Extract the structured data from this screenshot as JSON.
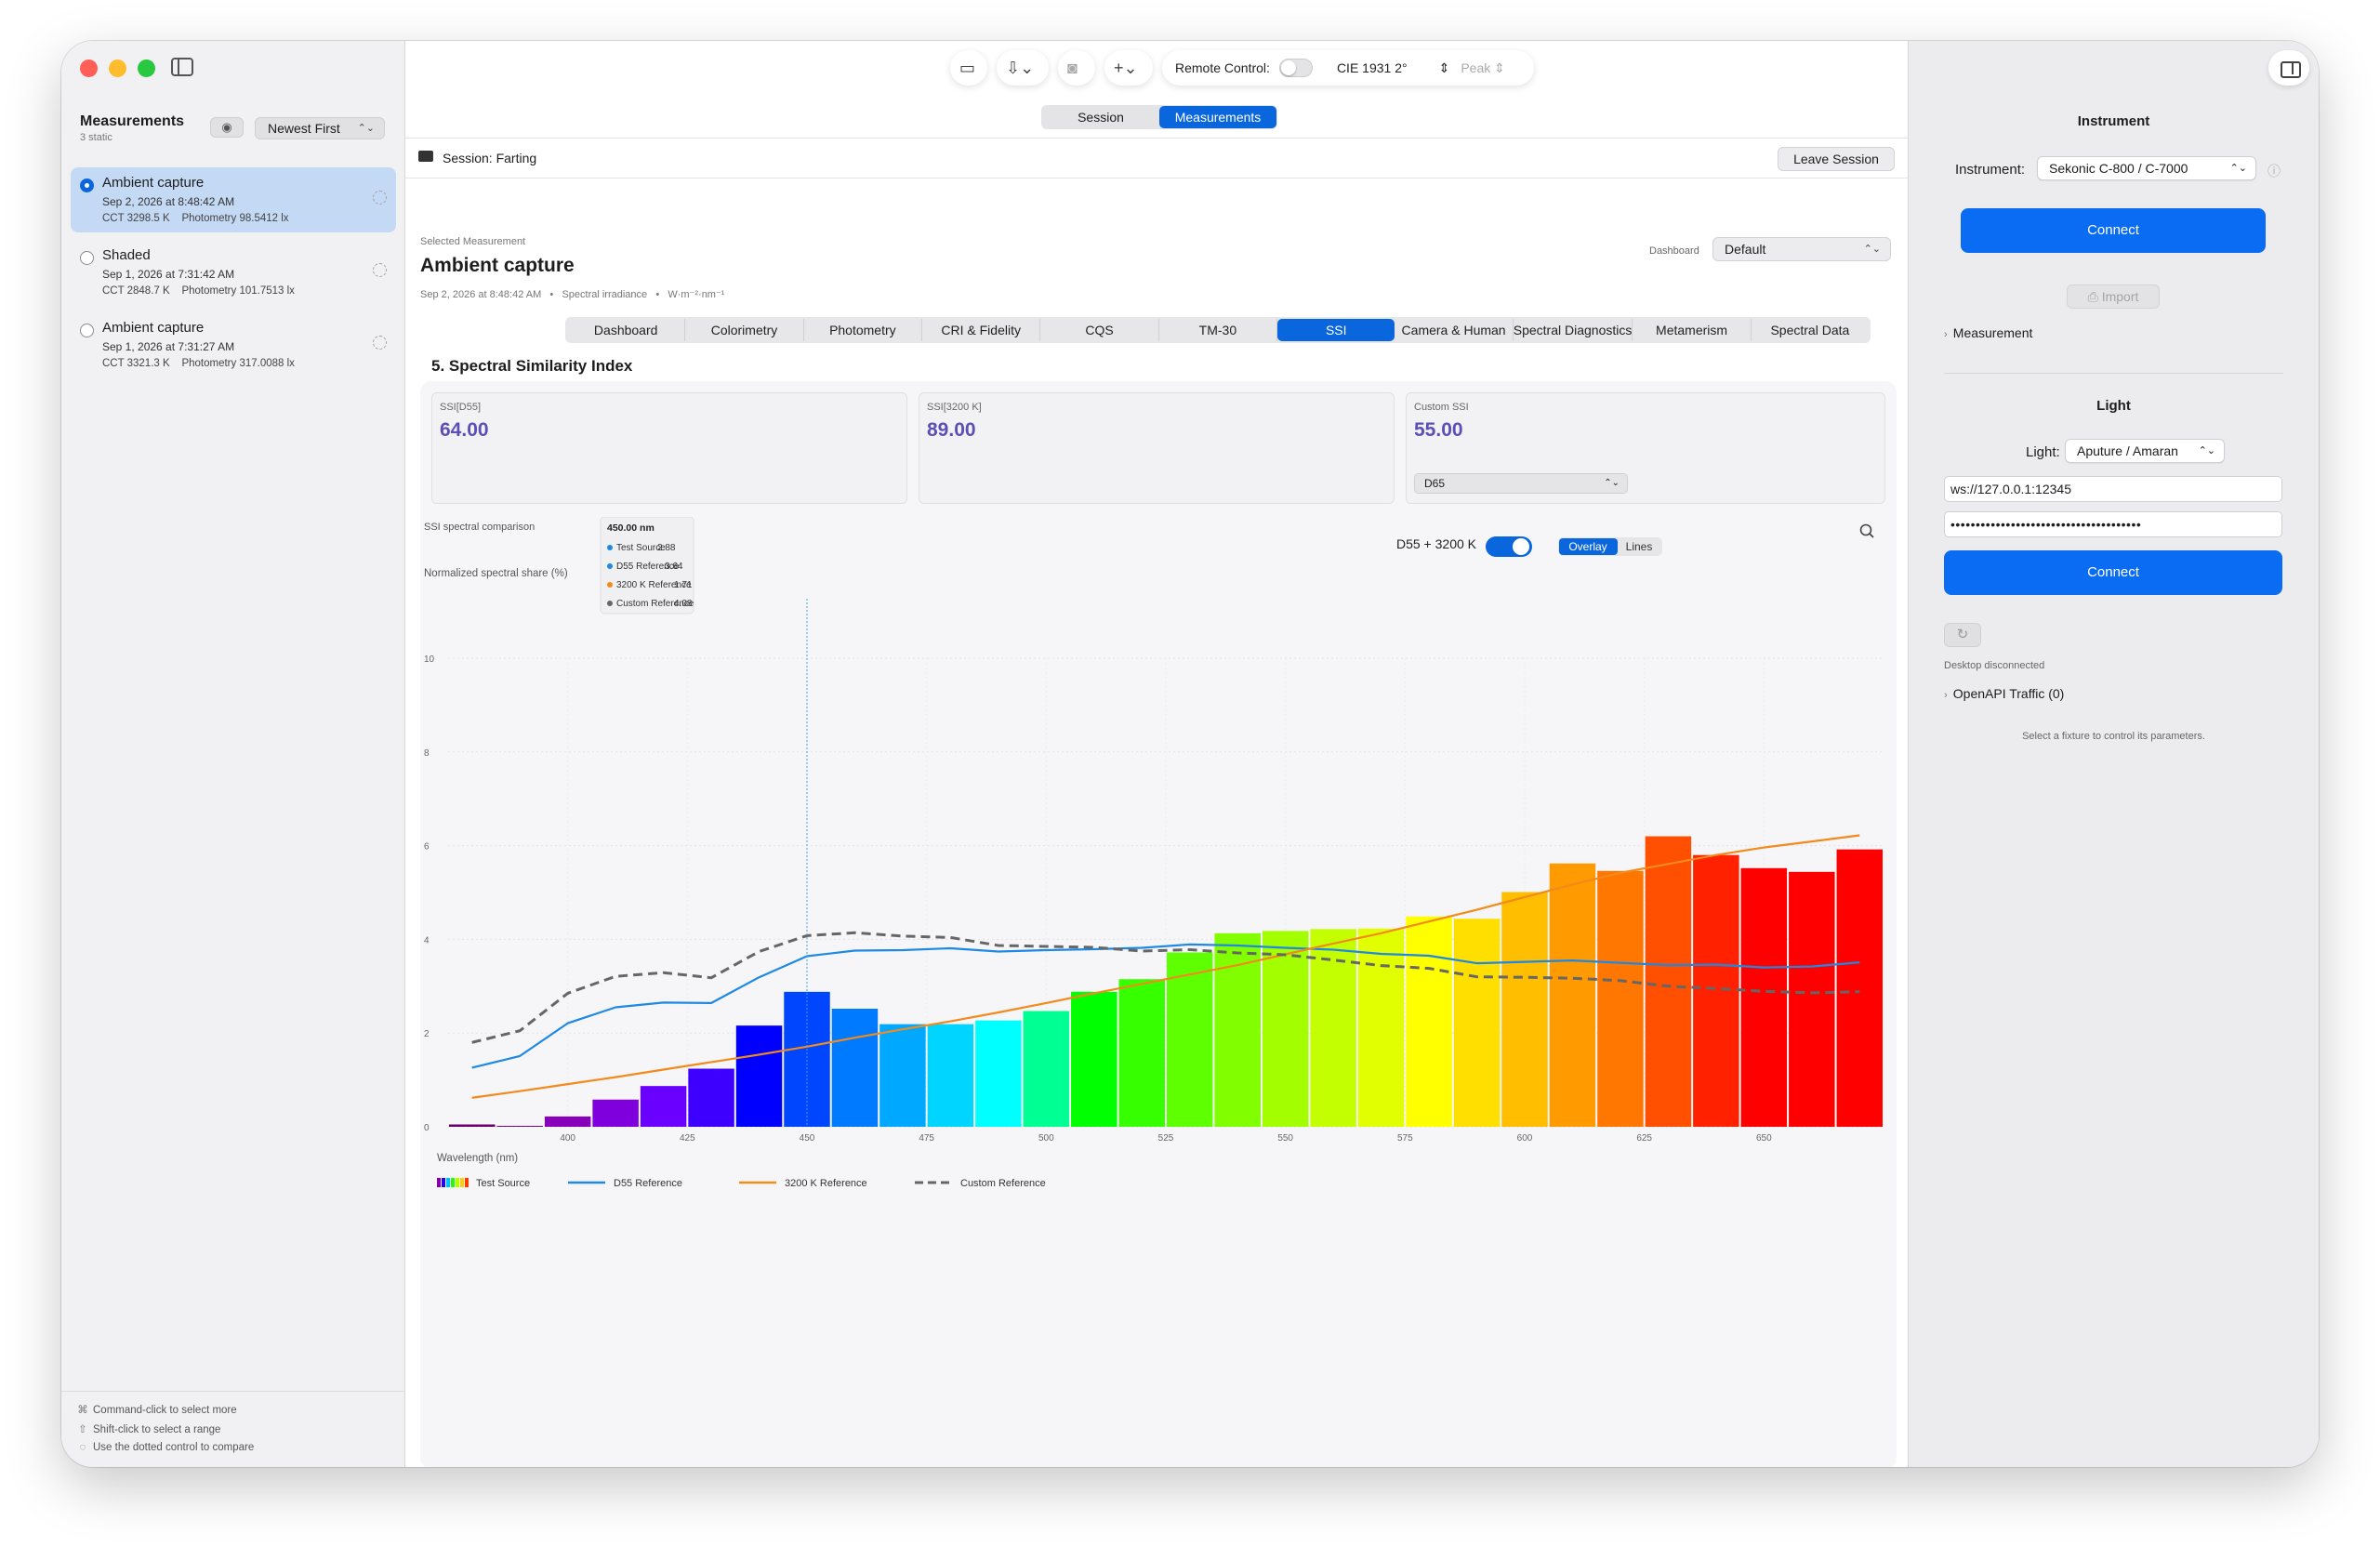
{
  "sidebar": {
    "title": "Measurements",
    "subtitle": "3 static",
    "sort": "Newest First",
    "items": [
      {
        "name": "Ambient capture",
        "date": "Sep 2, 2026 at 8:48:42 AM",
        "cct": "CCT 3298.5 K",
        "photometry": "Photometry 98.5412 lx",
        "selected": true
      },
      {
        "name": "Shaded",
        "date": "Sep 1, 2026 at 7:31:42 AM",
        "cct": "CCT 2848.7 K",
        "photometry": "Photometry 101.7513 lx",
        "selected": false
      },
      {
        "name": "Ambient capture",
        "date": "Sep 1, 2026 at 7:31:27 AM",
        "cct": "CCT 3321.3 K",
        "photometry": "Photometry 317.0088 lx",
        "selected": false
      }
    ],
    "hints": [
      "Command-click to select more",
      "Shift-click to select a range",
      "Use the dotted control to compare"
    ]
  },
  "toolbar": {
    "remote_control": "Remote Control:",
    "observer": "CIE 1931 2°",
    "peak": "Peak"
  },
  "segment": {
    "session": "Session",
    "measurements": "Measurements"
  },
  "session": {
    "label": "Session: Farting",
    "leave": "Leave Session"
  },
  "selected": {
    "label": "Selected Measurement",
    "title": "Ambient capture",
    "meta": "Sep 2, 2026 at 8:48:42 AM   •   Spectral irradiance   •   W·m⁻²·nm⁻¹"
  },
  "dashboard": {
    "label": "Dashboard",
    "value": "Default"
  },
  "tabs": [
    "Dashboard",
    "Colorimetry",
    "Photometry",
    "CRI & Fidelity",
    "CQS",
    "TM-30",
    "SSI",
    "Camera & Human",
    "Spectral Diagnostics",
    "Metamerism",
    "Spectral Data"
  ],
  "active_tab": "SSI",
  "section_title": "5. Spectral Similarity Index",
  "ssi": {
    "d55": {
      "label": "SSI[D55]",
      "value": "64.00"
    },
    "k3200": {
      "label": "SSI[3200 K]",
      "value": "89.00"
    },
    "custom": {
      "label": "Custom SSI",
      "value": "55.00",
      "reference": "D65"
    }
  },
  "chart_controls": {
    "toggle_label": "D55 + 3200 K",
    "overlay": "Overlay",
    "lines": "Lines"
  },
  "chart_data": {
    "type": "bar",
    "title": "SSI spectral comparison",
    "ylabel": "Normalized spectral share (%)",
    "xlabel": "Wavelength (nm)",
    "ylim": [
      0,
      10
    ],
    "yticks": [
      "0",
      "2",
      "4",
      "6",
      "8",
      "10"
    ],
    "xticks": [
      "400",
      "425",
      "450",
      "475",
      "500",
      "525",
      "550",
      "575",
      "600",
      "625",
      "650"
    ],
    "x": [
      380,
      390,
      400,
      410,
      420,
      430,
      440,
      450,
      460,
      470,
      480,
      490,
      500,
      510,
      520,
      530,
      540,
      550,
      560,
      570,
      580,
      590,
      600,
      610,
      620,
      630,
      640,
      650,
      660,
      670
    ],
    "series": [
      {
        "name": "Test Source",
        "type": "bar",
        "values": [
          0.05,
          0.02,
          0.22,
          0.58,
          0.87,
          1.24,
          2.16,
          2.88,
          2.52,
          2.19,
          2.19,
          2.27,
          2.47,
          2.88,
          3.15,
          3.72,
          4.13,
          4.18,
          4.22,
          4.23,
          4.49,
          4.44,
          5.01,
          5.62,
          5.46,
          6.2,
          5.8,
          5.52,
          5.44,
          5.92
        ]
      },
      {
        "name": "D55 Reference",
        "type": "line",
        "color": "#1e88e5",
        "values": [
          1.26,
          1.51,
          2.21,
          2.55,
          2.65,
          2.64,
          3.19,
          3.64,
          3.76,
          3.77,
          3.81,
          3.74,
          3.77,
          3.79,
          3.82,
          3.89,
          3.87,
          3.82,
          3.78,
          3.69,
          3.65,
          3.49,
          3.52,
          3.55,
          3.5,
          3.45,
          3.46,
          3.4,
          3.42,
          3.51
        ]
      },
      {
        "name": "3200 K Reference",
        "type": "line",
        "color": "#f28a1c",
        "values": [
          0.62,
          0.76,
          0.91,
          1.06,
          1.22,
          1.38,
          1.54,
          1.71,
          1.9,
          2.08,
          2.25,
          2.44,
          2.64,
          2.85,
          3.05,
          3.25,
          3.45,
          3.68,
          3.91,
          4.13,
          4.38,
          4.63,
          4.9,
          5.17,
          5.42,
          5.61,
          5.8,
          5.96,
          6.09,
          6.22
        ]
      },
      {
        "name": "Custom Reference",
        "type": "line",
        "dashed": true,
        "color": "#666666",
        "values": [
          1.8,
          2.05,
          2.85,
          3.21,
          3.29,
          3.18,
          3.74,
          4.08,
          4.14,
          4.07,
          4.04,
          3.87,
          3.85,
          3.83,
          3.75,
          3.78,
          3.71,
          3.67,
          3.56,
          3.44,
          3.38,
          3.2,
          3.19,
          3.17,
          3.12,
          3.0,
          2.95,
          2.89,
          2.86,
          2.88
        ]
      }
    ],
    "tooltip": {
      "title": "450.00 nm",
      "rows": [
        {
          "name": "Test Source",
          "value": "2.88",
          "color": "#1e88e5"
        },
        {
          "name": "D55 Reference",
          "value": "3.64",
          "color": "#1e88e5"
        },
        {
          "name": "3200 K Reference",
          "value": "1.71",
          "color": "#f28a1c"
        },
        {
          "name": "Custom Reference",
          "value": "4.08",
          "color": "#666666"
        }
      ]
    },
    "legend": [
      "Test Source",
      "D55 Reference",
      "3200 K Reference",
      "Custom Reference"
    ],
    "grid": true
  },
  "inspector": {
    "instrument_title": "Instrument",
    "instrument_label": "Instrument:",
    "instrument_value": "Sekonic C-800 / C-7000",
    "connect": "Connect",
    "import": "Import",
    "measurement": "Measurement",
    "light_title": "Light",
    "light_label": "Light:",
    "light_value": "Aputure / Amaran",
    "ws_url": "ws://127.0.0.1:12345",
    "password": "••••••••••••••••••••••••••••••••••••••",
    "connect2": "Connect",
    "desktop_status": "Desktop disconnected",
    "openapi": "OpenAPI Traffic (0)",
    "fixture_hint": "Select a fixture to control its parameters."
  }
}
